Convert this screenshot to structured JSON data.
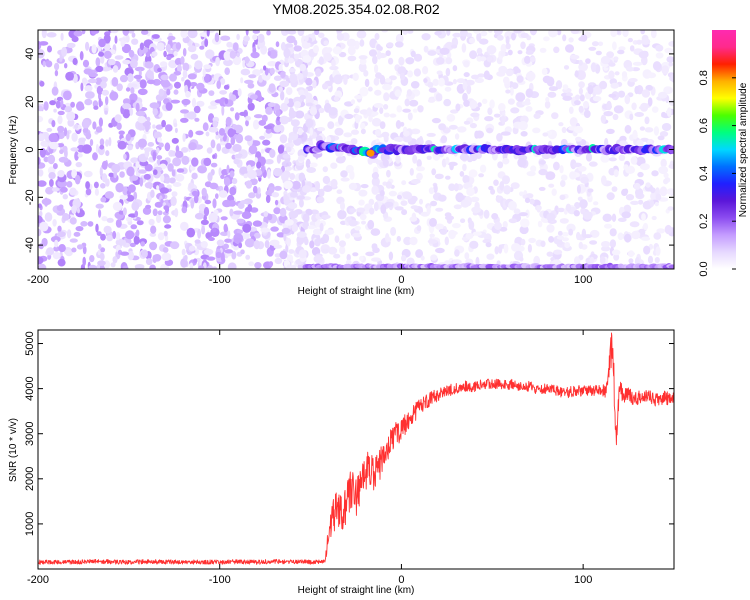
{
  "title": "YM08.2025.354.02.08.R02",
  "chart_data": [
    {
      "type": "heatmap",
      "xlabel": "Height of straight line (km)",
      "ylabel": "Frequency (Hz)",
      "xlim": [
        -200,
        150
      ],
      "ylim": [
        -50,
        50
      ],
      "xticks": [
        -200,
        -100,
        0,
        100
      ],
      "yticks": [
        -40,
        -20,
        0,
        20,
        40
      ],
      "colorbar": {
        "label": "Normalized spectral amplitude",
        "range": [
          0,
          1
        ],
        "ticks": [
          0.0,
          0.2,
          0.4,
          0.6,
          0.8
        ],
        "tick_labels": [
          "0.0",
          "0.2",
          "0.4",
          "0.6",
          "0.8"
        ],
        "colors": [
          "#ffffff",
          "#e6d8ff",
          "#c49cff",
          "#8c4cf0",
          "#5b17d9",
          "#2020ff",
          "#0070ff",
          "#00d8ff",
          "#00ff7f",
          "#4cff00",
          "#ffff00",
          "#ffb000",
          "#ff2000",
          "#ff2a8c",
          "#ff2ab0"
        ]
      },
      "features": [
        {
          "name": "broadband background",
          "x_range": [
            -200,
            -65
          ],
          "amplitude": 0.1
        },
        {
          "name": "zero-frequency line",
          "x_range": [
            -52,
            150
          ],
          "y": 0,
          "amplitude": 0.25,
          "peak_x": -17,
          "peak_amplitude": 0.8
        },
        {
          "name": "lower edge line",
          "x_range": [
            -52,
            150
          ],
          "y": -49,
          "amplitude": 0.15
        }
      ],
      "grid": false,
      "legend": "none"
    },
    {
      "type": "line",
      "xlabel": "Height of straight line (km)",
      "ylabel": "SNR (10 * v/v)",
      "xlim": [
        -200,
        150
      ],
      "ylim": [
        0,
        5300
      ],
      "xticks": [
        -200,
        -100,
        0,
        100
      ],
      "yticks": [
        1000,
        2000,
        3000,
        4000,
        5000
      ],
      "series": [
        {
          "color": "#ff3030",
          "x": [
            -200,
            -190,
            -180,
            -170,
            -160,
            -150,
            -140,
            -130,
            -120,
            -110,
            -100,
            -90,
            -80,
            -70,
            -60,
            -50,
            -45,
            -42,
            -40,
            -38,
            -35,
            -33,
            -30,
            -28,
            -25,
            -22,
            -20,
            -18,
            -15,
            -12,
            -10,
            -8,
            -5,
            -2,
            0,
            3,
            5,
            8,
            10,
            15,
            20,
            25,
            30,
            35,
            40,
            45,
            50,
            55,
            60,
            65,
            70,
            75,
            80,
            85,
            90,
            95,
            100,
            105,
            110,
            113,
            115,
            116,
            117,
            118,
            119,
            120,
            122,
            125,
            128,
            130,
            135,
            140,
            145,
            150
          ],
          "y": [
            150,
            160,
            150,
            170,
            160,
            150,
            165,
            155,
            160,
            150,
            155,
            160,
            150,
            165,
            160,
            155,
            150,
            160,
            800,
            1100,
            1400,
            1250,
            1500,
            1800,
            1600,
            1900,
            2100,
            2300,
            2100,
            2300,
            2500,
            2700,
            2900,
            3000,
            3100,
            3250,
            3400,
            3500,
            3600,
            3750,
            3850,
            3950,
            4000,
            4050,
            4050,
            4100,
            4100,
            4100,
            4100,
            4050,
            4050,
            4000,
            4000,
            3950,
            3900,
            3950,
            3950,
            3950,
            3950,
            4000,
            4600,
            5100,
            4200,
            2700,
            3300,
            4100,
            3800,
            3900,
            3750,
            3800,
            3850,
            3750,
            3800,
            3750
          ],
          "noise": [
            50,
            50,
            50,
            50,
            50,
            50,
            50,
            50,
            50,
            50,
            50,
            50,
            50,
            50,
            50,
            50,
            50,
            50,
            300,
            400,
            450,
            450,
            450,
            450,
            450,
            400,
            400,
            380,
            380,
            350,
            350,
            320,
            300,
            280,
            260,
            240,
            220,
            200,
            180,
            160,
            150,
            140,
            130,
            120,
            120,
            120,
            120,
            120,
            120,
            120,
            120,
            120,
            120,
            120,
            120,
            120,
            120,
            120,
            130,
            200,
            450,
            450,
            450,
            400,
            300,
            200,
            180,
            160,
            150,
            150,
            150,
            150,
            150,
            150
          ]
        }
      ],
      "grid": false,
      "legend": "none"
    }
  ]
}
